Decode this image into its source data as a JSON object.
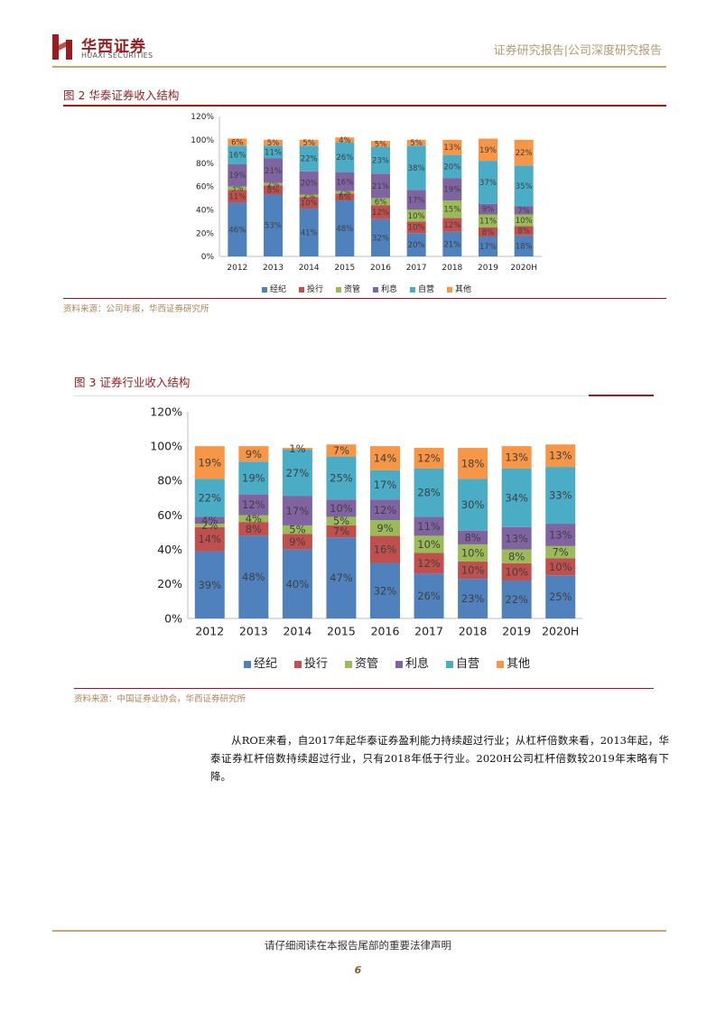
{
  "header": {
    "logo_cn": "华西证券",
    "logo_en": "HUAXI SECURITIES",
    "right_text": "证券研究报告|公司深度研究报告"
  },
  "colors": {
    "经纪": "#4f81bd",
    "投行": "#c0504d",
    "资管": "#9bbb59",
    "利息": "#8064a2",
    "自营": "#4bacc6",
    "其他": "#f79646",
    "brand": "#9b1c1f"
  },
  "figure2": {
    "title": "图 2 华泰证券收入结构",
    "source": "资料来源：公司年报，华西证券研究所"
  },
  "figure3": {
    "title": "图 3 证券行业收入结构",
    "source": "资料来源：中国证券业协会，华西证券研究所"
  },
  "chart_data": [
    {
      "type": "bar",
      "stacked": true,
      "title": "",
      "categories": [
        "2012",
        "2013",
        "2014",
        "2015",
        "2016",
        "2017",
        "2018",
        "2019",
        "2020H"
      ],
      "ylim": [
        0,
        120
      ],
      "yticks": [
        "0%",
        "20%",
        "40%",
        "60%",
        "80%",
        "100%",
        "120%"
      ],
      "legend_position": "bottom",
      "grid": false,
      "series": [
        {
          "name": "经纪",
          "values": [
            46,
            53,
            41,
            48,
            32,
            20,
            21,
            17,
            18
          ]
        },
        {
          "name": "投行",
          "values": [
            11,
            8,
            10,
            6,
            12,
            10,
            12,
            8,
            8
          ]
        },
        {
          "name": "资管",
          "values": [
            3,
            2,
            2,
            2,
            6,
            10,
            15,
            11,
            10
          ]
        },
        {
          "name": "利息",
          "values": [
            19,
            21,
            20,
            16,
            21,
            17,
            19,
            9,
            7
          ]
        },
        {
          "name": "自营",
          "values": [
            16,
            11,
            22,
            26,
            23,
            38,
            20,
            37,
            35
          ]
        },
        {
          "name": "其他",
          "values": [
            6,
            5,
            5,
            4,
            5,
            5,
            13,
            19,
            22
          ]
        }
      ]
    },
    {
      "type": "bar",
      "stacked": true,
      "title": "",
      "categories": [
        "2012",
        "2013",
        "2014",
        "2015",
        "2016",
        "2017",
        "2018",
        "2019",
        "2020H"
      ],
      "ylim": [
        0,
        120
      ],
      "yticks": [
        "0%",
        "20%",
        "40%",
        "60%",
        "80%",
        "100%",
        "120%"
      ],
      "legend_position": "bottom",
      "grid": false,
      "series": [
        {
          "name": "经纪",
          "values": [
            39,
            48,
            40,
            47,
            32,
            26,
            23,
            22,
            25
          ]
        },
        {
          "name": "投行",
          "values": [
            14,
            8,
            9,
            7,
            16,
            12,
            10,
            10,
            10
          ]
        },
        {
          "name": "资管",
          "values": [
            2,
            4,
            5,
            5,
            9,
            10,
            10,
            8,
            7
          ]
        },
        {
          "name": "利息",
          "values": [
            4,
            12,
            17,
            10,
            12,
            11,
            8,
            13,
            13
          ]
        },
        {
          "name": "自营",
          "values": [
            22,
            19,
            27,
            25,
            17,
            28,
            30,
            34,
            33
          ]
        },
        {
          "name": "其他",
          "values": [
            19,
            9,
            1,
            7,
            14,
            12,
            18,
            13,
            13
          ]
        }
      ]
    }
  ],
  "body_text": "从ROE来看，自2017年起华泰证券盈利能力持续超过行业；从杠杆倍数来看，2013年起，华泰证券杠杆倍数持续超过行业，只有2018年低于行业。2020H公司杠杆倍数较2019年末略有下降。",
  "footer": {
    "disclaimer": "请仔细阅读在本报告尾部的重要法律声明",
    "page": "6"
  }
}
